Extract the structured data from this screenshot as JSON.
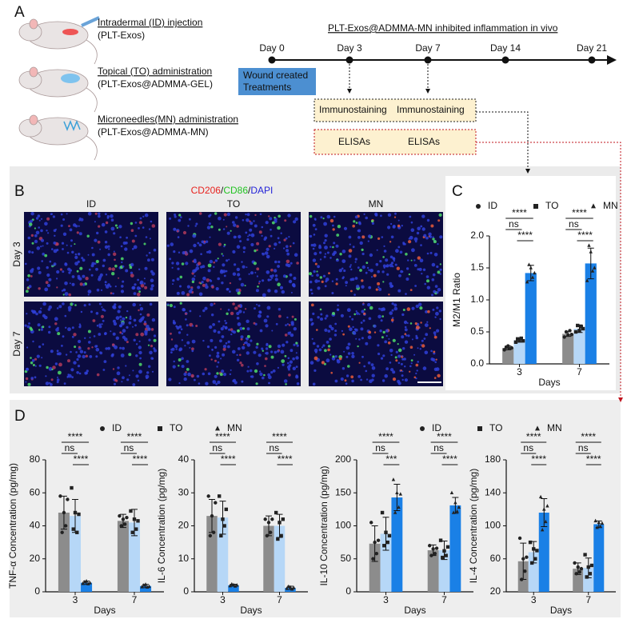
{
  "panel_a": {
    "label": "A",
    "treatments": [
      [
        "Intradermal (ID) injection",
        "(PLT-Exos)"
      ],
      [
        "Topical (TO) administration",
        "(PLT-Exos@ADMMA-GEL)"
      ],
      [
        "Microneedles(MN) administration",
        "(PLT-Exos@ADMMA-MN)"
      ]
    ],
    "timeline_title": "PLT-Exos@ADMMA-MN inhibited inflammation in vivo",
    "days": [
      "Day 0",
      "Day 3",
      "Day 7",
      "Day 14",
      "Day 21"
    ],
    "start_box": [
      "Wound created",
      "Treatments"
    ],
    "immunostaining": [
      "Immunostaining",
      "Immunostaining"
    ],
    "elisa": [
      "ELISAs",
      "ELISAs"
    ]
  },
  "panel_b": {
    "label": "B",
    "stain": [
      {
        "text": "CD206",
        "color": "#e8231f"
      },
      {
        "text": "/",
        "color": "#111111"
      },
      {
        "text": "CD86",
        "color": "#22c322"
      },
      {
        "text": "/",
        "color": "#111111"
      },
      {
        "text": "DAPI",
        "color": "#2323d8"
      }
    ],
    "columns": [
      "ID",
      "TO",
      "MN"
    ],
    "rows": [
      "Day 3",
      "Day 7"
    ]
  },
  "panel_d": {
    "label": "D"
  },
  "chart_data": [
    {
      "type": "bar",
      "label": "C",
      "legend": true,
      "x_label": "Days",
      "y_label": "M2/M1 Ratio",
      "categories": [
        "3",
        "7"
      ],
      "ylim": [
        0,
        2
      ],
      "yticks": [
        {
          "value": 0,
          "label": "0.0"
        },
        0.5,
        {
          "value": 1,
          "label": "1.0"
        },
        1.5,
        {
          "value": 2,
          "label": "2.0"
        }
      ],
      "series": [
        {
          "name": "ID",
          "marker": "circle",
          "color": "#8c8c8c",
          "values": [
            0.25,
            0.47
          ],
          "errors": [
            0.03,
            0.04
          ],
          "points": [
            [
              0.22,
              0.26,
              0.28,
              0.24,
              0.25
            ],
            [
              0.42,
              0.5,
              0.45,
              0.52,
              0.46
            ]
          ]
        },
        {
          "name": "TO",
          "marker": "square",
          "color": "#b6d7f7",
          "values": [
            0.37,
            0.55
          ],
          "errors": [
            0.03,
            0.06
          ],
          "points": [
            [
              0.34,
              0.39,
              0.36,
              0.4,
              0.36
            ],
            [
              0.5,
              0.6,
              0.52,
              0.58,
              0.55
            ]
          ]
        },
        {
          "name": "MN",
          "marker": "triangle",
          "color": "#1a80e6",
          "values": [
            1.42,
            1.57
          ],
          "errors": [
            0.12,
            0.24
          ],
          "points": [
            [
              1.28,
              1.55,
              1.5,
              1.35,
              1.42
            ],
            [
              1.3,
              1.85,
              1.75,
              1.45,
              1.5
            ]
          ]
        }
      ],
      "annotations": [
        [
          "ns",
          "****",
          "****"
        ],
        [
          "ns",
          "****",
          "****"
        ]
      ]
    },
    {
      "type": "bar",
      "legend": true,
      "x_label": "Days",
      "y_label": "TNF-α Concentration (pg/mg)",
      "categories": [
        "3",
        "7"
      ],
      "ylim": [
        0,
        80
      ],
      "yticks": [
        0,
        20,
        40,
        60,
        80
      ],
      "series": [
        {
          "name": "ID",
          "marker": "circle",
          "color": "#8c8c8c",
          "values": [
            48,
            43
          ],
          "errors": [
            10,
            4
          ],
          "points": [
            [
              58,
              36,
              48,
              40,
              56
            ],
            [
              46,
              40,
              44,
              41,
              45
            ]
          ]
        },
        {
          "name": "TO",
          "marker": "square",
          "color": "#b6d7f7",
          "values": [
            46,
            42
          ],
          "errors": [
            10,
            8
          ],
          "points": [
            [
              63,
              38,
              48,
              36,
              47
            ],
            [
              49,
              36,
              44,
              38,
              43
            ]
          ]
        },
        {
          "name": "MN",
          "marker": "triangle",
          "color": "#1a80e6",
          "values": [
            5.5,
            3.5
          ],
          "errors": [
            1,
            1
          ],
          "points": [
            [
              5,
              6,
              6.5,
              4.8,
              5.4
            ],
            [
              3,
              4,
              4.5,
              2.8,
              3.2
            ]
          ]
        }
      ],
      "annotations": [
        [
          "ns",
          "****",
          "****"
        ],
        [
          "ns",
          "****",
          "****"
        ]
      ]
    },
    {
      "type": "bar",
      "legend": false,
      "x_label": "Days",
      "y_label": "IL-6 Concentration (pg/mg)",
      "categories": [
        "3",
        "7"
      ],
      "ylim": [
        0,
        40
      ],
      "yticks": [
        0,
        10,
        20,
        30,
        40
      ],
      "series": [
        {
          "name": "ID",
          "marker": "circle",
          "color": "#8c8c8c",
          "values": [
            23,
            20
          ],
          "errors": [
            5,
            3
          ],
          "points": [
            [
              29,
              17,
              23,
              18,
              27
            ],
            [
              22,
              17,
              21,
              18,
              22
            ]
          ]
        },
        {
          "name": "TO",
          "marker": "square",
          "color": "#b6d7f7",
          "values": [
            22.5,
            20
          ],
          "errors": [
            5,
            3.5
          ],
          "points": [
            [
              29,
              17,
              22,
              20,
              25
            ],
            [
              24,
              16,
              21,
              17,
              22
            ]
          ]
        },
        {
          "name": "MN",
          "marker": "triangle",
          "color": "#1a80e6",
          "values": [
            2,
            1.2
          ],
          "errors": [
            0.3,
            0.5
          ],
          "points": [
            [
              1.8,
              2.3,
              2.1,
              1.7,
              2
            ],
            [
              1,
              1.6,
              1.4,
              0.8,
              1.2
            ]
          ]
        }
      ],
      "annotations": [
        [
          "ns",
          "****",
          "****"
        ],
        [
          "ns",
          "****",
          "****"
        ]
      ]
    },
    {
      "type": "bar",
      "legend": true,
      "x_label": "Days",
      "y_label": "IL-10 Concentration (pg/mg)",
      "categories": [
        "3",
        "7"
      ],
      "ylim": [
        0,
        200
      ],
      "yticks": [
        0,
        50,
        100,
        150,
        200
      ],
      "series": [
        {
          "name": "ID",
          "marker": "circle",
          "color": "#8c8c8c",
          "values": [
            73,
            63
          ],
          "errors": [
            27,
            8
          ],
          "points": [
            [
              105,
              50,
              75,
              58,
              78
            ],
            [
              70,
              55,
              65,
              58,
              66
            ]
          ]
        },
        {
          "name": "TO",
          "marker": "square",
          "color": "#b6d7f7",
          "values": [
            88,
            63
          ],
          "errors": [
            25,
            14
          ],
          "points": [
            [
              120,
              70,
              90,
              75,
              85
            ],
            [
              78,
              52,
              62,
              55,
              68
            ]
          ]
        },
        {
          "name": "MN",
          "marker": "triangle",
          "color": "#1a80e6",
          "values": [
            143,
            131
          ],
          "errors": [
            20,
            12
          ],
          "points": [
            [
              170,
              120,
              150,
              128,
              148
            ],
            [
              150,
              120,
              135,
              122,
              128
            ]
          ]
        }
      ],
      "annotations": [
        [
          "ns",
          "***",
          "****"
        ],
        [
          "ns",
          "****",
          "****"
        ]
      ]
    },
    {
      "type": "bar",
      "legend": false,
      "x_label": "Days",
      "y_label": "IL-4 Concentration (pg/mg)",
      "categories": [
        "3",
        "7"
      ],
      "ylim": [
        20,
        180
      ],
      "yticks": [
        20,
        60,
        100,
        140,
        180
      ],
      "series": [
        {
          "name": "ID",
          "marker": "circle",
          "color": "#8c8c8c",
          "values": [
            57,
            48
          ],
          "errors": [
            22,
            7
          ],
          "points": [
            [
              85,
              35,
              60,
              45,
              62
            ],
            [
              55,
              42,
              50,
              44,
              48
            ]
          ]
        },
        {
          "name": "TO",
          "marker": "square",
          "color": "#b6d7f7",
          "values": [
            68,
            49
          ],
          "errors": [
            13,
            12
          ],
          "points": [
            [
              80,
              55,
              72,
              60,
              70
            ],
            [
              65,
              38,
              50,
              42,
              52
            ]
          ]
        },
        {
          "name": "MN",
          "marker": "triangle",
          "color": "#1a80e6",
          "values": [
            116,
            102
          ],
          "errors": [
            17,
            4
          ],
          "points": [
            [
              135,
              95,
              120,
              105,
              124
            ],
            [
              106,
              98,
              104,
              99,
              103
            ]
          ]
        }
      ],
      "annotations": [
        [
          "ns",
          "****",
          "****"
        ],
        [
          "ns",
          "****",
          "****"
        ]
      ]
    }
  ]
}
